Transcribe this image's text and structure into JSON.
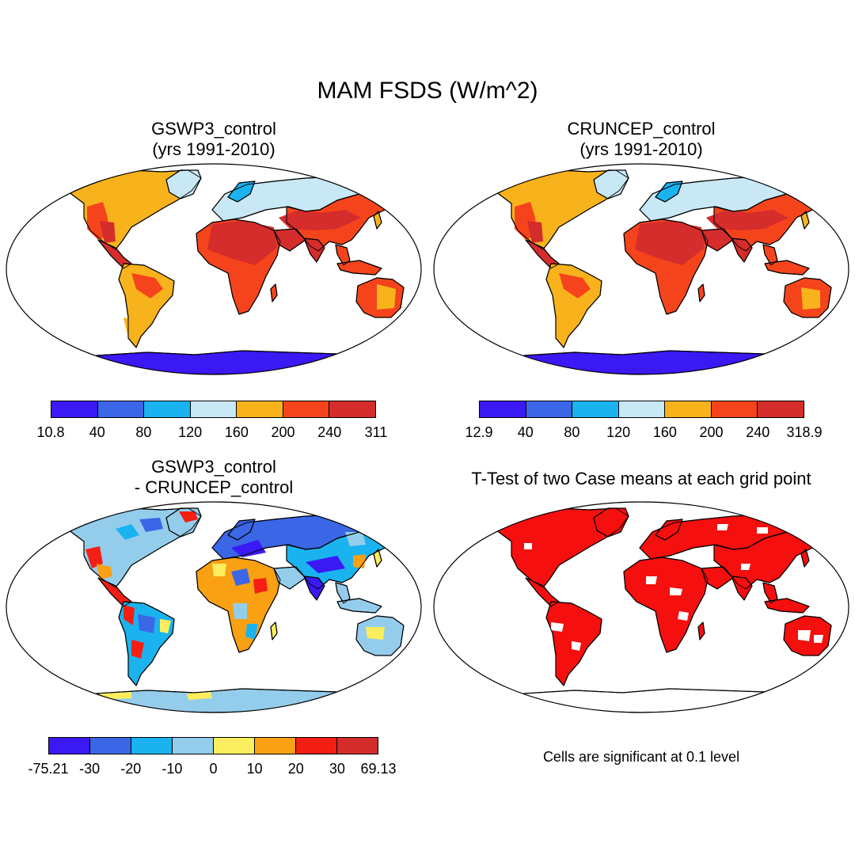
{
  "title": "MAM FSDS (W/m^2)",
  "panels": [
    {
      "id": "gswp3",
      "title": "GSWP3_control\n(yrs 1991-2010)",
      "colors": [
        "#3a19f5",
        "#3b66e6",
        "#1ab3f0",
        "#c8e8f6",
        "#f8b31c",
        "#f5441c",
        "#d52c2c"
      ],
      "labels": [
        "10.8",
        "40",
        "80",
        "120",
        "160",
        "200",
        "240",
        "311"
      ]
    },
    {
      "id": "cruncep",
      "title": "CRUNCEP_control\n(yrs 1991-2010)",
      "colors": [
        "#3a19f5",
        "#3b66e6",
        "#1ab3f0",
        "#c8e8f6",
        "#f8b31c",
        "#f5441c",
        "#d52c2c"
      ],
      "labels": [
        "12.9",
        "40",
        "80",
        "120",
        "160",
        "200",
        "240",
        "318.9"
      ]
    },
    {
      "id": "diff",
      "title": "GSWP3_control\n- CRUNCEP_control",
      "colors": [
        "#3a19f5",
        "#3b66e6",
        "#1ab3f0",
        "#94cdec",
        "#fbee5e",
        "#f9a013",
        "#f51e12",
        "#d52c2c"
      ],
      "labels": [
        "-75.21",
        "-30",
        "-20",
        "-10",
        "0",
        "10",
        "20",
        "30",
        "69.13"
      ]
    },
    {
      "id": "ttest",
      "title": "T-Test of two Case means at each grid point",
      "note": "Cells are significant at 0.1 level",
      "colors": [
        "#f50f0f"
      ]
    }
  ]
}
